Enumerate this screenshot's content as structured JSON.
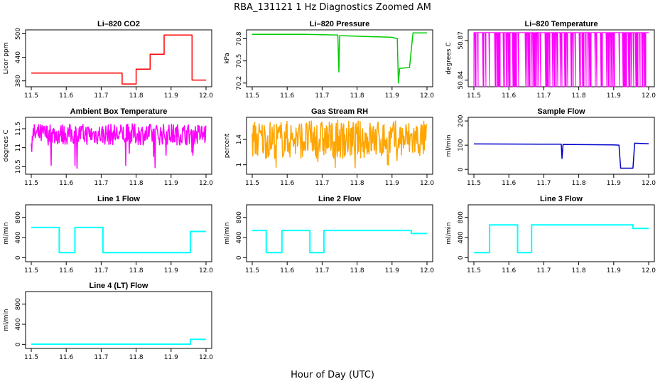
{
  "figure": {
    "title": "RBA_131121  1 Hz Diagnostics Zoomed AM",
    "xlabel": "Hour of Day (UTC)"
  },
  "chart_data": [
    {
      "type": "line",
      "title": "Li–820 CO2",
      "ylabel": "Licor ppm",
      "color": "#ff0000",
      "xlim": [
        11.5,
        12.0
      ],
      "ylim": [
        365,
        510
      ],
      "yticks": [
        380,
        440,
        500
      ],
      "xticks": [
        11.5,
        11.6,
        11.7,
        11.8,
        11.9,
        12.0
      ],
      "x": [
        11.5,
        11.76,
        11.76,
        11.8,
        11.8,
        11.84,
        11.84,
        11.88,
        11.88,
        11.96,
        11.96,
        12.0
      ],
      "y": [
        400,
        400,
        372,
        372,
        410,
        410,
        448,
        448,
        497,
        497,
        382,
        382
      ]
    },
    {
      "type": "line",
      "title": "Li–820 Pressure",
      "ylabel": "kPa",
      "color": "#00cc00",
      "xlim": [
        11.5,
        12.0
      ],
      "ylim": [
        70.15,
        70.92
      ],
      "yticks": [
        70.2,
        70.5,
        70.8
      ],
      "xticks": [
        11.5,
        11.6,
        11.7,
        11.8,
        11.9,
        12.0
      ],
      "x": [
        11.5,
        11.65,
        11.745,
        11.748,
        11.75,
        11.752,
        11.76,
        11.9,
        11.915,
        11.918,
        11.922,
        11.925,
        11.95,
        11.95,
        11.96,
        11.965,
        12.0
      ],
      "y": [
        70.86,
        70.86,
        70.85,
        70.35,
        70.84,
        70.84,
        70.84,
        70.82,
        70.8,
        70.2,
        70.4,
        70.4,
        70.41,
        70.41,
        70.88,
        70.88,
        70.88
      ]
    },
    {
      "type": "line",
      "title": "Li–820 Temperature",
      "ylabel": "degrees C",
      "color": "#ff00ff",
      "xlim": [
        11.5,
        12.0
      ],
      "ylim": [
        50.835,
        50.878
      ],
      "yticks": [
        50.84,
        50.87
      ],
      "xticks": [
        11.5,
        11.6,
        11.7,
        11.8,
        11.9,
        12.0
      ],
      "x": [
        11.5,
        12.0
      ],
      "y": [
        50.876,
        50.835
      ]
    },
    {
      "type": "line",
      "title": "Ambient Box Temperature",
      "ylabel": "degrees C",
      "color": "#ff00ff",
      "xlim": [
        11.5,
        12.0
      ],
      "ylim": [
        10.3,
        11.8
      ],
      "yticks": [
        10.5,
        11.0,
        11.5
      ],
      "xticks": [
        11.5,
        11.6,
        11.7,
        11.8,
        11.9,
        12.0
      ],
      "x": [
        11.5,
        12.0
      ],
      "y": [
        11.35,
        11.35
      ]
    },
    {
      "type": "line",
      "title": "Gas Stream RH",
      "ylabel": "percent",
      "color": "#ffa500",
      "xlim": [
        11.5,
        12.0
      ],
      "ylim": [
        0.85,
        1.75
      ],
      "yticks": [
        1.0,
        1.4
      ],
      "xticks": [
        11.5,
        11.6,
        11.7,
        11.8,
        11.9,
        12.0
      ],
      "x": [
        11.5,
        12.0
      ],
      "y": [
        1.4,
        1.4
      ]
    },
    {
      "type": "line",
      "title": "Sample Flow",
      "ylabel": "ml/min",
      "color": "#0000cc",
      "xlim": [
        11.5,
        12.0
      ],
      "ylim": [
        -20,
        215
      ],
      "yticks": [
        0,
        100,
        200
      ],
      "xticks": [
        11.5,
        11.6,
        11.7,
        11.8,
        11.9,
        12.0
      ],
      "x": [
        11.5,
        11.75,
        11.752,
        11.755,
        11.9,
        11.915,
        11.92,
        11.955,
        11.96,
        12.0
      ],
      "y": [
        105,
        104,
        45,
        103,
        101,
        100,
        5,
        5,
        108,
        106
      ]
    },
    {
      "type": "line",
      "title": "Line 1 Flow",
      "ylabel": "ml/min",
      "color": "#00ffff",
      "xlim": [
        11.5,
        12.0
      ],
      "ylim": [
        -80,
        1050
      ],
      "yticks": [
        0,
        400,
        800
      ],
      "xticks": [
        11.5,
        11.6,
        11.7,
        11.8,
        11.9,
        12.0
      ],
      "x": [
        11.5,
        11.58,
        11.58,
        11.625,
        11.625,
        11.705,
        11.705,
        11.955,
        11.955,
        12.0
      ],
      "y": [
        600,
        600,
        100,
        100,
        600,
        600,
        100,
        100,
        520,
        520
      ]
    },
    {
      "type": "line",
      "title": "Line 2 Flow",
      "ylabel": "ml/min",
      "color": "#00ffff",
      "xlim": [
        11.5,
        12.0
      ],
      "ylim": [
        -80,
        1050
      ],
      "yticks": [
        0,
        400,
        800
      ],
      "xticks": [
        11.5,
        11.6,
        11.7,
        11.8,
        11.9,
        12.0
      ],
      "x": [
        11.5,
        11.54,
        11.54,
        11.585,
        11.585,
        11.665,
        11.665,
        11.705,
        11.705,
        11.955,
        11.955,
        12.0
      ],
      "y": [
        540,
        540,
        100,
        100,
        540,
        540,
        100,
        100,
        540,
        540,
        480,
        480
      ]
    },
    {
      "type": "line",
      "title": "Line 3 Flow",
      "ylabel": "ml/min",
      "color": "#00ffff",
      "xlim": [
        11.5,
        12.0
      ],
      "ylim": [
        -80,
        1050
      ],
      "yticks": [
        0,
        400,
        800
      ],
      "xticks": [
        11.5,
        11.6,
        11.7,
        11.8,
        11.9,
        12.0
      ],
      "x": [
        11.5,
        11.545,
        11.545,
        11.625,
        11.625,
        11.665,
        11.665,
        11.955,
        11.955,
        12.0
      ],
      "y": [
        100,
        100,
        650,
        650,
        100,
        100,
        650,
        650,
        580,
        580
      ]
    },
    {
      "type": "line",
      "title": "Line 4 (LT) Flow",
      "ylabel": "ml/min",
      "color": "#00ffff",
      "xlim": [
        11.5,
        12.0
      ],
      "ylim": [
        -80,
        1050
      ],
      "yticks": [
        0,
        400,
        800
      ],
      "xticks": [
        11.5,
        11.6,
        11.7,
        11.8,
        11.9,
        12.0
      ],
      "x": [
        11.5,
        11.955,
        11.955,
        12.0
      ],
      "y": [
        5,
        5,
        100,
        100
      ]
    }
  ]
}
